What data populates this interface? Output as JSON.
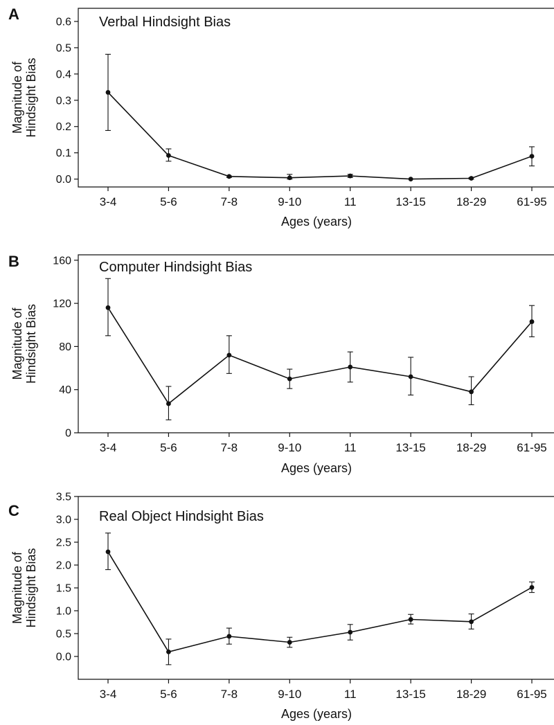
{
  "figure": {
    "x_categories": [
      "3-4",
      "5-6",
      "7-8",
      "9-10",
      "11",
      "13-15",
      "18-29",
      "61-95"
    ]
  },
  "chart_data": [
    {
      "type": "line",
      "panel_label": "A",
      "title": "Verbal Hindsight Bias",
      "xlabel": "Ages (years)",
      "ylabel": [
        "Magnitude of",
        "Hindsight Bias"
      ],
      "categories": [
        "3-4",
        "5-6",
        "7-8",
        "9-10",
        "11",
        "13-15",
        "18-29",
        "61-95"
      ],
      "ylim": [
        -0.03,
        0.65
      ],
      "yticks": [
        0.0,
        0.1,
        0.2,
        0.3,
        0.4,
        0.5,
        0.6
      ],
      "ytick_labels": [
        "0.0",
        "0.1",
        "0.2",
        "0.3",
        "0.4",
        "0.5",
        "0.6"
      ],
      "series": [
        {
          "values": [
            0.33,
            0.09,
            0.01,
            0.005,
            0.012,
            0.0,
            0.003,
            0.087
          ],
          "error_low": [
            0.185,
            0.068,
            0.006,
            0.0,
            0.006,
            0.0,
            0.0,
            0.05
          ],
          "error_high": [
            0.475,
            0.115,
            0.012,
            0.018,
            0.018,
            0.0,
            0.006,
            0.123
          ]
        }
      ],
      "grid": false,
      "legend": "none"
    },
    {
      "type": "line",
      "panel_label": "B",
      "title": "Computer Hindsight Bias",
      "xlabel": "Ages (years)",
      "ylabel": [
        "Magnitude of",
        "Hindsight Bias"
      ],
      "categories": [
        "3-4",
        "5-6",
        "7-8",
        "9-10",
        "11",
        "13-15",
        "18-29",
        "61-95"
      ],
      "ylim": [
        0,
        165
      ],
      "yticks": [
        0,
        40,
        80,
        120,
        160
      ],
      "ytick_labels": [
        "0",
        "40",
        "80",
        "120",
        "160"
      ],
      "series": [
        {
          "values": [
            116,
            27,
            72,
            50,
            61,
            52,
            38,
            103
          ],
          "error_low": [
            90,
            12,
            55,
            41,
            47,
            35,
            26,
            89
          ],
          "error_high": [
            143,
            43,
            90,
            59,
            75,
            70,
            52,
            118
          ]
        }
      ],
      "grid": false,
      "legend": "none"
    },
    {
      "type": "line",
      "panel_label": "C",
      "title": "Real Object Hindsight Bias",
      "xlabel": "Ages (years)",
      "ylabel": [
        "Magnitude of",
        "Hindsight Bias"
      ],
      "categories": [
        "3-4",
        "5-6",
        "7-8",
        "9-10",
        "11",
        "13-15",
        "18-29",
        "61-95"
      ],
      "ylim": [
        -0.5,
        3.5
      ],
      "yticks": [
        0.0,
        0.5,
        1.0,
        1.5,
        2.0,
        2.5,
        3.0,
        3.5
      ],
      "ytick_labels": [
        "0.0",
        "0.5",
        "1.0",
        "1.5",
        "2.0",
        "2.5",
        "3.0",
        "3.5"
      ],
      "series": [
        {
          "values": [
            2.29,
            0.1,
            0.44,
            0.31,
            0.53,
            0.81,
            0.76,
            1.51
          ],
          "error_low": [
            1.9,
            -0.18,
            0.27,
            0.2,
            0.36,
            0.71,
            0.6,
            1.4
          ],
          "error_high": [
            2.7,
            0.38,
            0.62,
            0.42,
            0.7,
            0.92,
            0.93,
            1.63
          ]
        }
      ],
      "grid": false,
      "legend": "none"
    }
  ]
}
